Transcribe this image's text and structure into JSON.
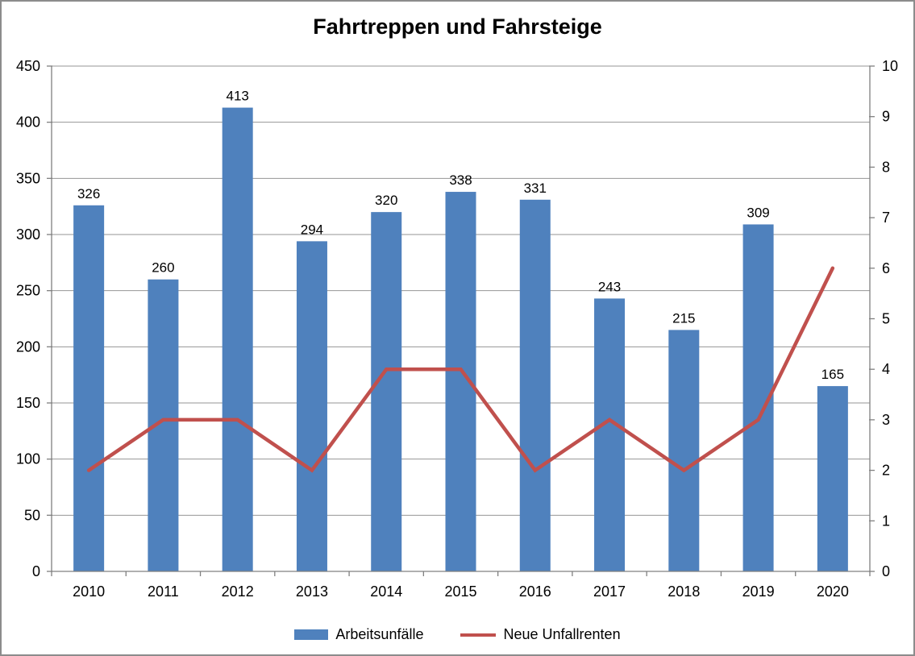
{
  "chart_data": {
    "type": "combo-bar-line",
    "title": "Fahrtreppen und Fahrsteige",
    "categories": [
      "2010",
      "2011",
      "2012",
      "2013",
      "2014",
      "2015",
      "2016",
      "2017",
      "2018",
      "2019",
      "2020"
    ],
    "series": [
      {
        "name": "Arbeitsunfälle",
        "type": "bar",
        "axis": "left",
        "color": "#4F81BD",
        "values": [
          326,
          260,
          413,
          294,
          320,
          338,
          331,
          243,
          215,
          309,
          165
        ],
        "data_labels": [
          "326",
          "260",
          "413",
          "294",
          "320",
          "338",
          "331",
          "243",
          "215",
          "309",
          "165"
        ]
      },
      {
        "name": "Neue Unfallrenten",
        "type": "line",
        "axis": "right",
        "color": "#C0504D",
        "values": [
          2,
          3,
          3,
          2,
          4,
          4,
          2,
          3,
          2,
          3,
          6
        ]
      }
    ],
    "left_axis": {
      "min": 0,
      "max": 450,
      "step": 50,
      "tick_labels": [
        "0",
        "50",
        "100",
        "150",
        "200",
        "250",
        "300",
        "350",
        "400",
        "450"
      ]
    },
    "right_axis": {
      "min": 0,
      "max": 10,
      "step": 1,
      "tick_labels": [
        "0",
        "1",
        "2",
        "3",
        "4",
        "5",
        "6",
        "7",
        "8",
        "9",
        "10"
      ]
    },
    "grid": "horizontal",
    "legend_position": "bottom",
    "colors": {
      "bar": "#4F81BD",
      "line": "#C0504D",
      "gridline": "#969696",
      "axis_line": "#808080",
      "text": "#000000",
      "frame_border": "#8C8C8C"
    },
    "legend": {
      "bar_label": "Arbeitsunfälle",
      "line_label": "Neue Unfallrenten"
    }
  }
}
